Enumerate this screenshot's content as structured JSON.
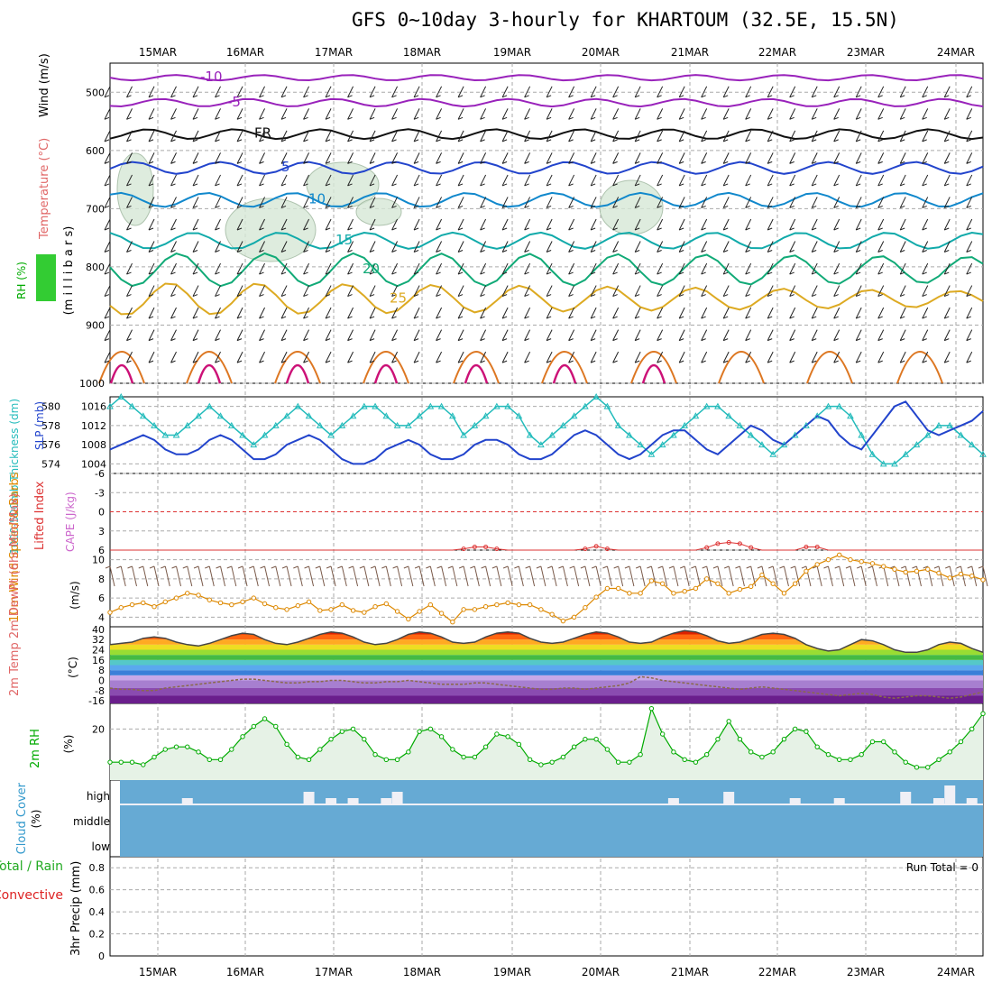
{
  "title": "GFS 0~10day 3-hourly for KHARTOUM (32.5E, 15.5N)",
  "dates": [
    "15MAR",
    "16MAR",
    "17MAR",
    "18MAR",
    "19MAR",
    "20MAR",
    "21MAR",
    "22MAR",
    "23MAR",
    "24MAR"
  ],
  "colors": {
    "temperature": "#e06666",
    "rh": "#00aa00",
    "thickness": "#22bbbb",
    "slp": "#2244cc",
    "lifted_index": "#dd3333",
    "cape": "#cc66cc",
    "wind_speed": "#dd8800",
    "cloud_fill": "#66aad4",
    "precip_total": "#22aa22",
    "precip_conv": "#dd2222"
  },
  "chart_data": [
    {
      "type": "contour",
      "panel": "upper-air",
      "ylabel_parts": {
        "rh": "RH (%)",
        "temperature": "Temperature (°C)",
        "wind": "Wind (m/s)"
      },
      "ylabel2": "(m i l l i b a r s)",
      "y_ticks": [
        "500",
        "600",
        "700",
        "800",
        "900",
        "1000"
      ],
      "ylim": [
        450,
        1000
      ],
      "isotherms": [
        {
          "label": "-10",
          "pressure": 475,
          "color": "#9922bb"
        },
        {
          "label": "-5",
          "pressure": 518,
          "color": "#9922bb"
        },
        {
          "label": "FR",
          "pressure": 572,
          "color": "#111111"
        },
        {
          "label": "5",
          "pressure": 630,
          "color": "#2244cc"
        },
        {
          "label": "10",
          "pressure": 685,
          "color": "#1188cc"
        },
        {
          "label": "15",
          "pressure": 755,
          "color": "#11aaaa"
        },
        {
          "label": "20",
          "pressure": 805,
          "color": "#11aa77"
        },
        {
          "label": "25",
          "pressure": 855,
          "color": "#ddaa22"
        }
      ],
      "labels_shown": [
        "-10",
        "-5",
        "-5",
        "FR",
        "FR",
        "FR",
        "5",
        "10",
        "10",
        "15",
        "15",
        "20",
        "20",
        "25",
        "10",
        "10",
        "-10"
      ]
    },
    {
      "type": "line",
      "panel": "thickness-slp",
      "ylabel": "1000-500mb Thickness (dm)",
      "ylabel2": "SLP (mb)",
      "thickness_ticks": [
        "580",
        "578",
        "576",
        "574"
      ],
      "slp_ticks": [
        "1016",
        "1012",
        "1008",
        "1004"
      ],
      "thickness_range": [
        573,
        581
      ],
      "slp_range": [
        1002,
        1018
      ],
      "series": [
        {
          "name": "thickness",
          "values": [
            580,
            581,
            580,
            579,
            578,
            577,
            577,
            578,
            579,
            580,
            579,
            578,
            577,
            576,
            577,
            578,
            579,
            580,
            579,
            578,
            577,
            578,
            579,
            580,
            580,
            579,
            578,
            578,
            579,
            580,
            580,
            579,
            577,
            578,
            579,
            580,
            580,
            579,
            577,
            576,
            577,
            578,
            579,
            580,
            581,
            580,
            578,
            577,
            576,
            575,
            576,
            577,
            578,
            579,
            580,
            580,
            579,
            578,
            577,
            576,
            575,
            576,
            577,
            578,
            579,
            580,
            580,
            579,
            577,
            575,
            574,
            574,
            575,
            576,
            577,
            578,
            578,
            577,
            576,
            575
          ]
        },
        {
          "name": "slp",
          "values": [
            1007,
            1008,
            1009,
            1010,
            1009,
            1007,
            1006,
            1006,
            1007,
            1009,
            1010,
            1009,
            1007,
            1005,
            1005,
            1006,
            1008,
            1009,
            1010,
            1009,
            1007,
            1005,
            1004,
            1004,
            1005,
            1007,
            1008,
            1009,
            1008,
            1006,
            1005,
            1005,
            1006,
            1008,
            1009,
            1009,
            1008,
            1006,
            1005,
            1005,
            1006,
            1008,
            1010,
            1011,
            1010,
            1008,
            1006,
            1005,
            1006,
            1008,
            1010,
            1011,
            1011,
            1009,
            1007,
            1006,
            1008,
            1010,
            1012,
            1011,
            1009,
            1008,
            1010,
            1012,
            1014,
            1013,
            1010,
            1008,
            1007,
            1010,
            1013,
            1016,
            1017,
            1014,
            1011,
            1010,
            1011,
            1012,
            1013,
            1015
          ]
        }
      ]
    },
    {
      "type": "line",
      "panel": "stability",
      "ylabel": "Lifted Index",
      "ylabel2": "CAPE (J/kg)",
      "y_ticks": [
        "-6",
        "-3",
        "0",
        "3",
        "6"
      ],
      "ylim": [
        -6,
        6
      ],
      "series": [
        {
          "name": "lifted_index",
          "values": [
            6,
            6,
            6,
            6,
            6,
            6,
            6,
            6,
            6,
            6,
            6,
            6,
            6,
            6,
            6,
            6,
            6,
            6,
            6,
            6,
            6,
            6,
            6,
            6,
            6,
            6,
            6,
            6,
            6,
            6,
            6,
            6,
            5.8,
            5.5,
            5.5,
            5.8,
            6,
            6,
            6,
            6,
            6,
            6,
            6,
            5.8,
            5.4,
            5.8,
            6,
            6,
            6,
            6,
            6,
            6,
            6,
            6,
            5.6,
            5,
            4.8,
            5,
            5.6,
            6,
            6,
            6,
            6,
            5.5,
            5.5,
            6,
            6,
            6,
            6,
            6,
            6,
            6,
            6,
            6,
            6,
            6,
            6,
            6,
            6,
            6
          ]
        }
      ]
    },
    {
      "type": "line",
      "panel": "wind",
      "ylabel": "10m Wind Speed & Barbs",
      "ylabel2": "(m/s)",
      "y_ticks": [
        "4",
        "6",
        "8",
        "10"
      ],
      "ylim": [
        3,
        11
      ],
      "series": [
        {
          "name": "wind_speed",
          "values": [
            4.5,
            5,
            5.3,
            5.5,
            5.1,
            5.6,
            6,
            6.5,
            6.3,
            5.8,
            5.5,
            5.3,
            5.6,
            6,
            5.4,
            5,
            4.8,
            5.2,
            5.6,
            4.7,
            4.8,
            5.3,
            4.7,
            4.5,
            5.1,
            5.4,
            4.6,
            3.8,
            4.6,
            5.3,
            4.4,
            3.5,
            4.8,
            4.8,
            5.1,
            5.3,
            5.5,
            5.3,
            5.3,
            4.8,
            4.3,
            3.6,
            4,
            5,
            6.1,
            7,
            7,
            6.5,
            6.5,
            7.8,
            7.5,
            6.5,
            6.7,
            7,
            8,
            7.5,
            6.5,
            6.9,
            7.2,
            8.4,
            7.5,
            6.5,
            7.5,
            8.8,
            9.5,
            10,
            10.5,
            10,
            9.8,
            9.6,
            9.3,
            9,
            8.7,
            8.8,
            9,
            8.6,
            8.1,
            8.5,
            8.3,
            7.9
          ]
        }
      ]
    },
    {
      "type": "area",
      "panel": "temperature",
      "ylabel": "2m Temp 2m DewPt (6hr Min/Max)",
      "ylabel2": "(°C)",
      "y_ticks": [
        "40",
        "32",
        "24",
        "16",
        "8",
        "0",
        "-8",
        "-16"
      ],
      "ylim": [
        -18,
        42
      ],
      "series": [
        {
          "name": "temp",
          "values": [
            28,
            29,
            30,
            33,
            34,
            33,
            30,
            28,
            27,
            29,
            32,
            35,
            37,
            36,
            32,
            29,
            28,
            30,
            33,
            36,
            38,
            37,
            34,
            30,
            28,
            29,
            32,
            36,
            38,
            37,
            34,
            30,
            29,
            30,
            34,
            37,
            38,
            37,
            33,
            30,
            29,
            30,
            33,
            36,
            38,
            37,
            34,
            30,
            29,
            30,
            34,
            37,
            39,
            38,
            35,
            31,
            29,
            30,
            33,
            36,
            37,
            36,
            33,
            28,
            25,
            23,
            24,
            28,
            32,
            31,
            28,
            24,
            22,
            22,
            24,
            28,
            30,
            29,
            25,
            22
          ]
        },
        {
          "name": "dewpoint",
          "values": [
            -6,
            -7,
            -7,
            -8,
            -8,
            -6,
            -5,
            -4,
            -3,
            -2,
            -1,
            0,
            1,
            1,
            0,
            -1,
            -2,
            -2,
            -1,
            -1,
            0,
            0,
            -1,
            -2,
            -2,
            -1,
            -1,
            0,
            -1,
            -2,
            -3,
            -3,
            -3,
            -2,
            -2,
            -3,
            -4,
            -5,
            -6,
            -7,
            -7,
            -6,
            -6,
            -7,
            -6,
            -5,
            -4,
            -2,
            3,
            2,
            0,
            -1,
            -2,
            -3,
            -4,
            -5,
            -6,
            -7,
            -6,
            -5,
            -6,
            -7,
            -8,
            -9,
            -10,
            -11,
            -12,
            -11,
            -10,
            -11,
            -13,
            -14,
            -13,
            -12,
            -12,
            -13,
            -14,
            -13,
            -11,
            -9
          ]
        }
      ]
    },
    {
      "type": "line",
      "panel": "rh",
      "ylabel": "2m RH",
      "ylabel2": "(%)",
      "y_ticks": [
        "20"
      ],
      "ylim": [
        0,
        30
      ],
      "series": [
        {
          "name": "rh",
          "values": [
            7,
            7,
            7,
            6,
            9,
            12,
            13,
            13,
            11,
            8,
            8,
            12,
            17,
            21,
            24,
            21,
            14,
            9,
            8,
            12,
            16,
            19,
            20,
            16,
            10,
            8,
            8,
            11,
            19,
            20,
            17,
            12,
            9,
            9,
            13,
            18,
            17,
            14,
            8,
            6,
            7,
            9,
            13,
            16,
            16,
            12,
            7,
            7,
            10,
            28,
            18,
            11,
            8,
            7,
            10,
            16,
            23,
            16,
            11,
            9,
            11,
            16,
            20,
            19,
            13,
            10,
            8,
            8,
            10,
            15,
            15,
            11,
            7,
            5,
            5,
            8,
            11,
            15,
            20,
            26
          ]
        }
      ]
    },
    {
      "type": "bar",
      "panel": "cloud",
      "ylabel": "Cloud Cover",
      "ylabel2": "(%)",
      "levels": [
        "high",
        "middle",
        "low"
      ],
      "series": [
        {
          "name": "high",
          "values": [
            0,
            0,
            0,
            0,
            0,
            0,
            0,
            0,
            0,
            0,
            0,
            0,
            0,
            0,
            0,
            0,
            0,
            0,
            0,
            0,
            0,
            0,
            0,
            0,
            0,
            0,
            0,
            0,
            0,
            0,
            0,
            0,
            0,
            0,
            0,
            0,
            0,
            0,
            0,
            0,
            0,
            0,
            0,
            0,
            0,
            0,
            0,
            0,
            0,
            0,
            0,
            0,
            0,
            0,
            0,
            0,
            0,
            0,
            0,
            0,
            0,
            0,
            0,
            0,
            0,
            0,
            0,
            0,
            0,
            0,
            0,
            0,
            0,
            0,
            0,
            0,
            0,
            0,
            0,
            0
          ]
        }
      ]
    },
    {
      "type": "bar",
      "panel": "precip",
      "ylabel": "3hr Precip (mm)",
      "ylabel_parts": {
        "total": "Total / Rain",
        "convective": "Convective"
      },
      "run_total": "Run Total = 0",
      "y_ticks": [
        "0.8",
        "0.6",
        "0.4",
        "0.2",
        "0"
      ],
      "ylim": [
        0,
        0.9
      ],
      "series": [
        {
          "name": "precip",
          "values": [
            0,
            0,
            0,
            0,
            0,
            0,
            0,
            0,
            0,
            0,
            0,
            0,
            0,
            0,
            0,
            0,
            0,
            0,
            0,
            0,
            0,
            0,
            0,
            0,
            0,
            0,
            0,
            0,
            0,
            0,
            0,
            0,
            0,
            0,
            0,
            0,
            0,
            0,
            0,
            0,
            0,
            0,
            0,
            0,
            0,
            0,
            0,
            0,
            0,
            0,
            0,
            0,
            0,
            0,
            0,
            0,
            0,
            0,
            0,
            0,
            0,
            0,
            0,
            0,
            0,
            0,
            0,
            0,
            0,
            0,
            0,
            0,
            0,
            0,
            0,
            0,
            0,
            0,
            0,
            0
          ]
        }
      ]
    }
  ],
  "high_cloud_cells": [
    0,
    0,
    0,
    0,
    0,
    0,
    1,
    3,
    1,
    1,
    0,
    0,
    0,
    0,
    0,
    0,
    0,
    0,
    0,
    0,
    0,
    0,
    0,
    0,
    0,
    0,
    0,
    0,
    0,
    0,
    0,
    0,
    0,
    0,
    0,
    0,
    0,
    0,
    0,
    0,
    0,
    0,
    0,
    0,
    0,
    0,
    0,
    0,
    0,
    0,
    0,
    0,
    0,
    0,
    0,
    0,
    0,
    0,
    0,
    0,
    0,
    0,
    0,
    0,
    0,
    0,
    0,
    0,
    0,
    0,
    0,
    0,
    0,
    0,
    0,
    0,
    0,
    0,
    0,
    0
  ]
}
